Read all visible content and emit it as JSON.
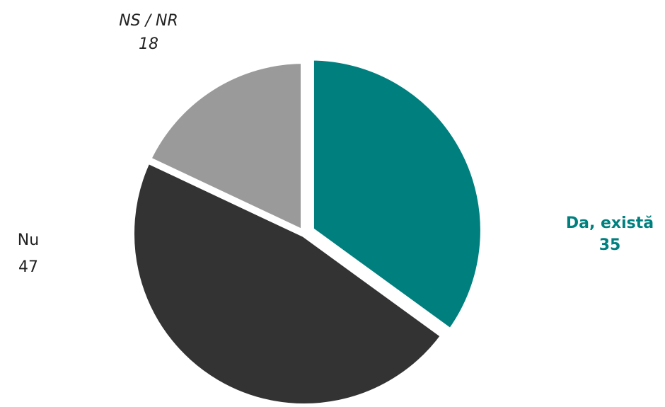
{
  "chart_data": {
    "type": "pie",
    "title": "",
    "start_angle_deg": 0,
    "direction": "clockwise",
    "slices": [
      {
        "label": "Da, există",
        "value": 35,
        "value_text": "35",
        "color": "#007f7f",
        "label_color": "#007f7f",
        "label_weight": "bold",
        "label_style": "normal"
      },
      {
        "label": "Nu",
        "value": 47,
        "value_text": "47",
        "color": "#333333",
        "label_color": "#222222",
        "label_weight": "normal",
        "label_style": "normal"
      },
      {
        "label": "NS / NR",
        "value": 18,
        "value_text": "18",
        "color": "#9a9a9a",
        "label_color": "#222222",
        "label_weight": "normal",
        "label_style": "italic"
      }
    ]
  }
}
